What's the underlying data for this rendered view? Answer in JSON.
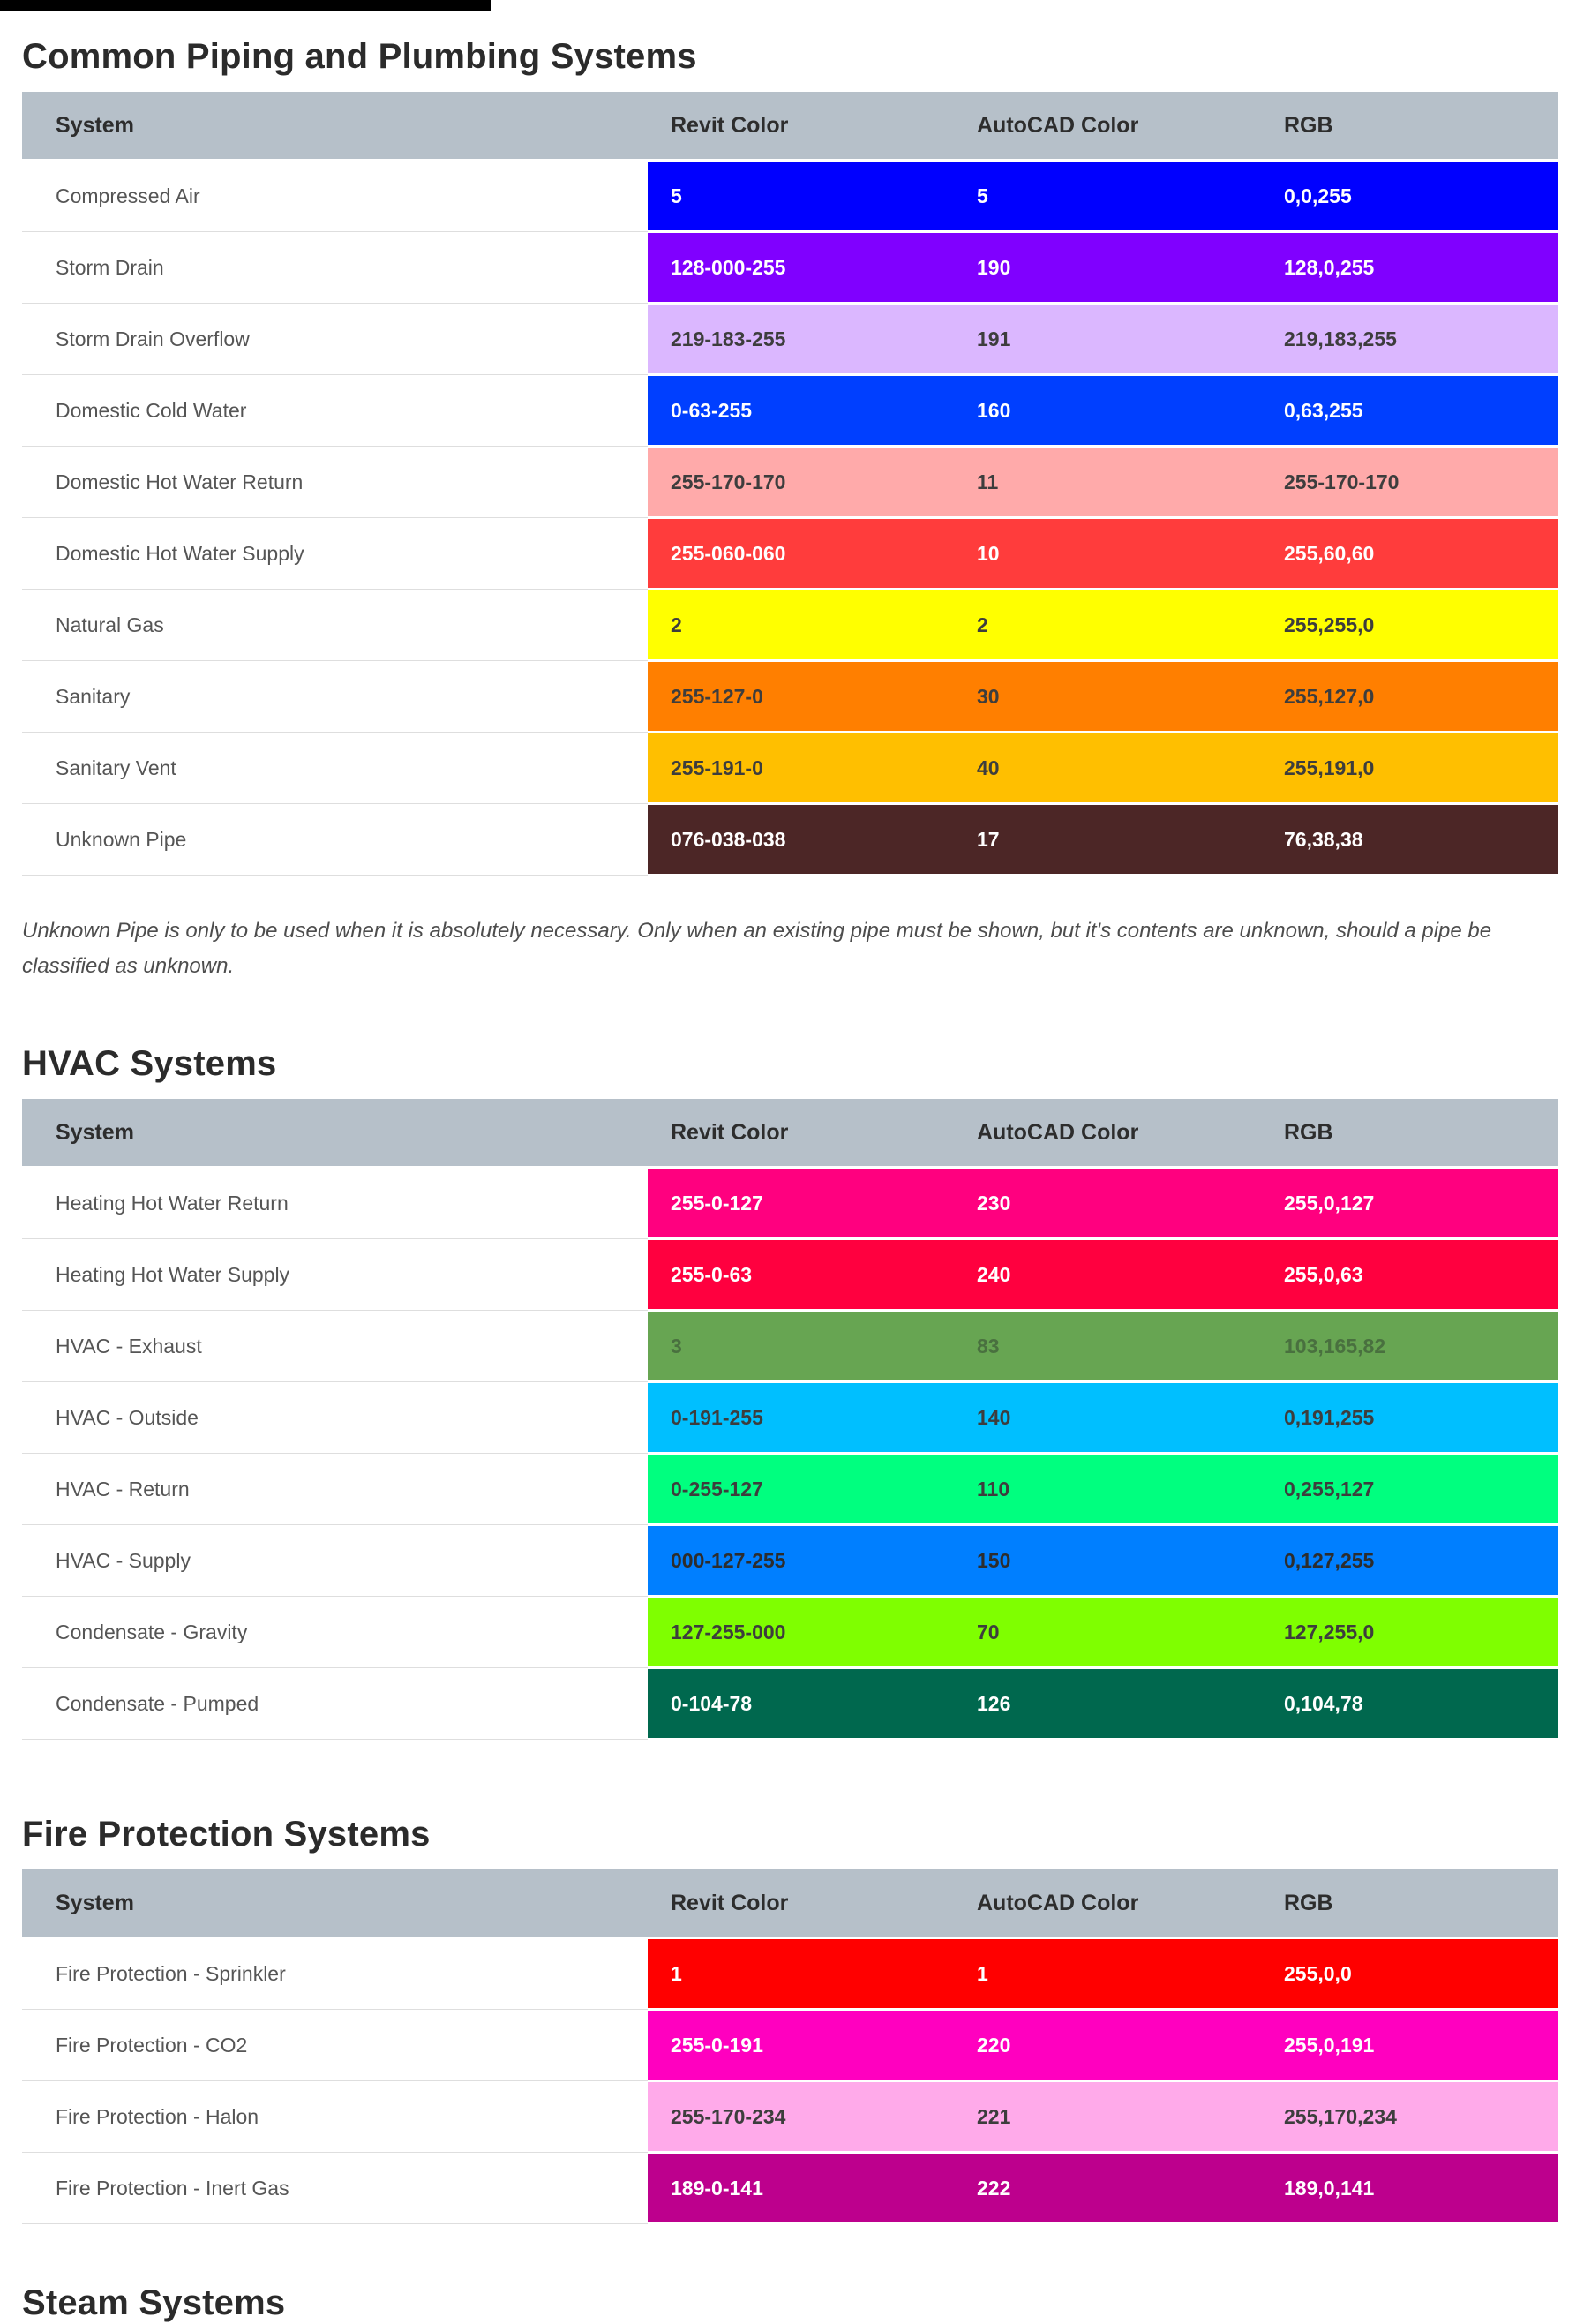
{
  "top_bar": {
    "color": "#000000"
  },
  "header_bg": "#b6c0c9",
  "sections": [
    {
      "id": "piping",
      "title": "Common Piping and Plumbing Systems",
      "columns": {
        "system": "System",
        "revit": "Revit Color",
        "autocad": "AutoCAD Color",
        "rgb": "RGB"
      },
      "rows": [
        {
          "system": "Compressed Air",
          "revit": "5",
          "autocad": "5",
          "rgb": "0,0,255",
          "bg": "#0000FF",
          "fg": "#FFFFFF"
        },
        {
          "system": "Storm Drain",
          "revit": "128-000-255",
          "autocad": "190",
          "rgb": "128,0,255",
          "bg": "#8000FF",
          "fg": "#FFFFFF"
        },
        {
          "system": "Storm Drain Overflow",
          "revit": "219-183-255",
          "autocad": "191",
          "rgb": "219,183,255",
          "bg": "#DBB7FF",
          "fg": "#3d3d3d"
        },
        {
          "system": "Domestic Cold Water",
          "revit": "0-63-255",
          "autocad": "160",
          "rgb": "0,63,255",
          "bg": "#003FFF",
          "fg": "#FFFFFF"
        },
        {
          "system": "Domestic Hot Water Return",
          "revit": "255-170-170",
          "autocad": "11",
          "rgb": "255-170-170",
          "bg": "#FFAAAA",
          "fg": "#3d3d3d"
        },
        {
          "system": "Domestic Hot Water Supply",
          "revit": "255-060-060",
          "autocad": "10",
          "rgb": "255,60,60",
          "bg": "#FF3C3C",
          "fg": "#FFFFFF"
        },
        {
          "system": "Natural Gas",
          "revit": "2",
          "autocad": "2",
          "rgb": "255,255,0",
          "bg": "#FFFF00",
          "fg": "#3d3d3d"
        },
        {
          "system": "Sanitary",
          "revit": "255-127-0",
          "autocad": "30",
          "rgb": "255,127,0",
          "bg": "#FF7F00",
          "fg": "#3d3d3d"
        },
        {
          "system": "Sanitary Vent",
          "revit": "255-191-0",
          "autocad": "40",
          "rgb": "255,191,0",
          "bg": "#FFBF00",
          "fg": "#3d3d3d"
        },
        {
          "system": "Unknown Pipe",
          "revit": "076-038-038",
          "autocad": "17",
          "rgb": "76,38,38",
          "bg": "#4C2626",
          "fg": "#FFFFFF"
        }
      ],
      "note": "Unknown Pipe is only to be used when it is absolutely necessary. Only when an existing pipe must be shown, but it's contents are unknown, should a pipe be classified as unknown."
    },
    {
      "id": "hvac",
      "title": "HVAC Systems",
      "columns": {
        "system": "System",
        "revit": "Revit Color",
        "autocad": "AutoCAD Color",
        "rgb": "RGB"
      },
      "rows": [
        {
          "system": "Heating Hot Water Return",
          "revit": "255-0-127",
          "autocad": "230",
          "rgb": "255,0,127",
          "bg": "#FF007F",
          "fg": "#FFFFFF"
        },
        {
          "system": "Heating Hot Water Supply",
          "revit": "255-0-63",
          "autocad": "240",
          "rgb": "255,0,63",
          "bg": "#FF003F",
          "fg": "#FFFFFF"
        },
        {
          "system": "HVAC - Exhaust",
          "revit": "3",
          "autocad": "83",
          "rgb": "103,165,82",
          "bg": "#67A552",
          "fg": "#49703F"
        },
        {
          "system": "HVAC - Outside",
          "revit": "0-191-255",
          "autocad": "140",
          "rgb": "0,191,255",
          "bg": "#00BFFF",
          "fg": "#3d3d3d"
        },
        {
          "system": "HVAC - Return",
          "revit": "0-255-127",
          "autocad": "110",
          "rgb": "0,255,127",
          "bg": "#00FF7F",
          "fg": "#3d3d3d"
        },
        {
          "system": "HVAC - Supply",
          "revit": "000-127-255",
          "autocad": "150",
          "rgb": "0,127,255",
          "bg": "#007FFF",
          "fg": "#2d2d2d"
        },
        {
          "system": "Condensate - Gravity",
          "revit": "127-255-000",
          "autocad": "70",
          "rgb": "127,255,0",
          "bg": "#7FFF00",
          "fg": "#3d3d3d"
        },
        {
          "system": "Condensate - Pumped",
          "revit": "0-104-78",
          "autocad": "126",
          "rgb": "0,104,78",
          "bg": "#00684E",
          "fg": "#FFFFFF"
        }
      ],
      "note": ""
    },
    {
      "id": "fire",
      "title": "Fire Protection Systems",
      "columns": {
        "system": "System",
        "revit": "Revit Color",
        "autocad": "AutoCAD Color",
        "rgb": "RGB"
      },
      "rows": [
        {
          "system": "Fire Protection - Sprinkler",
          "revit": "1",
          "autocad": "1",
          "rgb": "255,0,0",
          "bg": "#FF0000",
          "fg": "#FFFFFF"
        },
        {
          "system": "Fire Protection - CO2",
          "revit": "255-0-191",
          "autocad": "220",
          "rgb": "255,0,191",
          "bg": "#FF00BF",
          "fg": "#FFFFFF"
        },
        {
          "system": "Fire Protection - Halon",
          "revit": "255-170-234",
          "autocad": "221",
          "rgb": "255,170,234",
          "bg": "#FFAAEA",
          "fg": "#3d3d3d"
        },
        {
          "system": "Fire Protection - Inert Gas",
          "revit": "189-0-141",
          "autocad": "222",
          "rgb": "189,0,141",
          "bg": "#BD008D",
          "fg": "#FFFFFF"
        }
      ],
      "note": ""
    },
    {
      "id": "steam",
      "title": "Steam Systems",
      "rows": []
    }
  ]
}
